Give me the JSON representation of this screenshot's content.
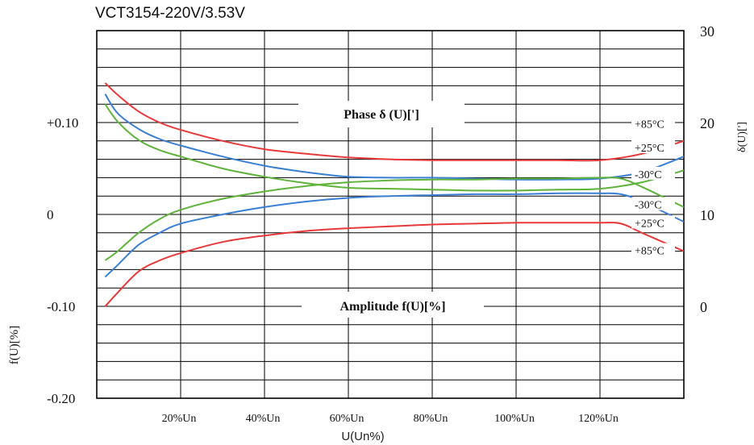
{
  "chart_data": {
    "type": "line",
    "title": "VCT3154-220V/3.53V",
    "xlabel": "U(Un%)",
    "x_tick_labels": [
      "20%Un",
      "40%Un",
      "60%Un",
      "80%Un",
      "100%Un",
      "120%Un"
    ],
    "x_tick_values": [
      20,
      40,
      60,
      80,
      100,
      120
    ],
    "xlim": [
      0,
      140
    ],
    "left_axis": {
      "label": "f(U)[%]",
      "ylim": [
        -0.2,
        0.2
      ],
      "tick_labels": [
        "+0.10",
        "0",
        "-0.10",
        "-0.20"
      ],
      "tick_values": [
        0.1,
        0,
        -0.1,
        -0.2
      ]
    },
    "right_axis": {
      "label": "δ(U)[']",
      "ylim": [
        -10,
        30
      ],
      "tick_labels": [
        "30",
        "20",
        "10",
        "0"
      ],
      "tick_values": [
        30,
        20,
        10,
        0
      ]
    },
    "grid": true,
    "annotations": [
      "Phase δ (U)[']",
      "Amplitude f(U)[%]"
    ],
    "series": [
      {
        "name": "+85°C",
        "group": "phase",
        "color": "#e8393a",
        "x": [
          2,
          5,
          10,
          15,
          20,
          30,
          40,
          50,
          60,
          70,
          80,
          90,
          100,
          110,
          120,
          130,
          140
        ],
        "y": [
          24.3,
          23.0,
          21.2,
          20.0,
          19.2,
          18.0,
          17.1,
          16.6,
          16.2,
          16.0,
          15.9,
          15.9,
          15.9,
          15.9,
          15.9,
          16.6,
          18.0
        ]
      },
      {
        "name": "+25°C",
        "group": "phase",
        "color": "#3b7fd4",
        "x": [
          2,
          5,
          10,
          15,
          20,
          30,
          40,
          50,
          60,
          70,
          80,
          90,
          100,
          110,
          120,
          130,
          140
        ],
        "y": [
          23.1,
          21.0,
          19.3,
          18.2,
          17.5,
          16.3,
          15.3,
          14.6,
          14.1,
          14.0,
          14.0,
          13.9,
          13.8,
          13.8,
          13.9,
          14.6,
          16.3
        ]
      },
      {
        "name": "-30°C",
        "group": "phase",
        "color": "#5fb33a",
        "x": [
          2,
          5,
          10,
          15,
          20,
          30,
          40,
          50,
          60,
          70,
          80,
          90,
          100,
          110,
          120,
          130,
          140
        ],
        "y": [
          22.0,
          20.1,
          18.1,
          17.0,
          16.3,
          15.0,
          14.1,
          13.4,
          12.9,
          12.8,
          12.7,
          12.6,
          12.6,
          12.7,
          12.8,
          13.5,
          14.8
        ]
      },
      {
        "name": "-30°C",
        "group": "amplitude",
        "color": "#5fb33a",
        "x": [
          2,
          5,
          10,
          15,
          20,
          30,
          40,
          50,
          60,
          70,
          80,
          90,
          100,
          110,
          120,
          125,
          130,
          140
        ],
        "y": [
          -0.05,
          -0.04,
          -0.02,
          -0.005,
          0.005,
          0.017,
          0.025,
          0.031,
          0.035,
          0.037,
          0.038,
          0.038,
          0.039,
          0.039,
          0.04,
          0.039,
          0.03,
          0.008
        ]
      },
      {
        "name": "+25°C",
        "group": "amplitude",
        "color": "#3b7fd4",
        "x": [
          2,
          5,
          10,
          15,
          20,
          30,
          40,
          50,
          60,
          70,
          80,
          90,
          100,
          110,
          120,
          125,
          130,
          140
        ],
        "y": [
          -0.068,
          -0.055,
          -0.033,
          -0.02,
          -0.01,
          0.0,
          0.008,
          0.014,
          0.018,
          0.02,
          0.021,
          0.022,
          0.022,
          0.023,
          0.023,
          0.022,
          0.014,
          -0.008
        ]
      },
      {
        "name": "+85°C",
        "group": "amplitude",
        "color": "#e8393a",
        "x": [
          2,
          5,
          10,
          15,
          20,
          30,
          40,
          50,
          60,
          70,
          80,
          90,
          100,
          110,
          120,
          125,
          130,
          140
        ],
        "y": [
          -0.1,
          -0.085,
          -0.062,
          -0.05,
          -0.042,
          -0.03,
          -0.023,
          -0.018,
          -0.015,
          -0.013,
          -0.011,
          -0.01,
          -0.009,
          -0.009,
          -0.009,
          -0.01,
          -0.02,
          -0.04
        ]
      }
    ],
    "legend_labels": [
      {
        "text": "+85°C",
        "color": "#e8393a",
        "axis": "right",
        "y": 19.8
      },
      {
        "text": "+25°C",
        "color": "#3b7fd4",
        "axis": "right",
        "y": 17.2
      },
      {
        "text": "-30°C",
        "color": "#5fb33a",
        "axis": "right",
        "y": 14.3
      },
      {
        "text": "-30°C",
        "color": "#5fb33a",
        "axis": "left",
        "y": 0.01
      },
      {
        "text": "+25°C",
        "color": "#3b7fd4",
        "axis": "left",
        "y": -0.01
      },
      {
        "text": "+85°C",
        "color": "#e8393a",
        "axis": "left",
        "y": -0.04
      }
    ]
  }
}
